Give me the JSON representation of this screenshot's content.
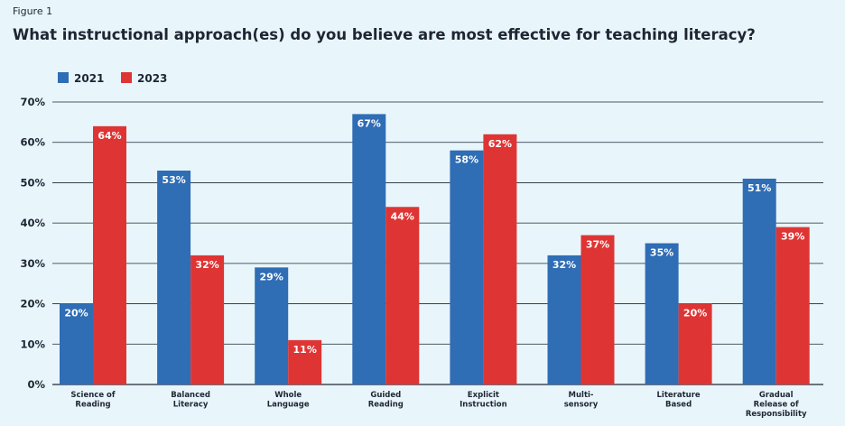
{
  "figure_label": "Figure 1",
  "chart_data": {
    "type": "bar",
    "title": "What instructional approach(es) do you believe are most effective for teaching literacy?",
    "xlabel": "",
    "ylabel": "",
    "ylim": [
      0,
      70
    ],
    "yticks": [
      "0%",
      "10%",
      "20%",
      "30%",
      "40%",
      "50%",
      "60%",
      "70%"
    ],
    "grid": true,
    "legend_position": "top-left",
    "categories": [
      [
        "Science of",
        "Reading"
      ],
      [
        "Balanced",
        "Literacy"
      ],
      [
        "Whole",
        "Language"
      ],
      [
        "Guided",
        "Reading"
      ],
      [
        "Explicit",
        "Instruction"
      ],
      [
        "Multi-",
        "sensory"
      ],
      [
        "Literature",
        "Based"
      ],
      [
        "Gradual",
        "Release of",
        "Responsibility"
      ]
    ],
    "series": [
      {
        "name": "2021",
        "color": "#2f6db5",
        "values": [
          20,
          53,
          29,
          67,
          58,
          32,
          35,
          51
        ],
        "labels": [
          "20%",
          "53%",
          "29%",
          "67%",
          "58%",
          "32%",
          "35%",
          "51%"
        ]
      },
      {
        "name": "2023",
        "color": "#de3534",
        "values": [
          64,
          32,
          11,
          44,
          62,
          37,
          20,
          39
        ],
        "labels": [
          "64%",
          "32%",
          "11%",
          "44%",
          "62%",
          "37%",
          "20%",
          "39%"
        ]
      }
    ]
  }
}
